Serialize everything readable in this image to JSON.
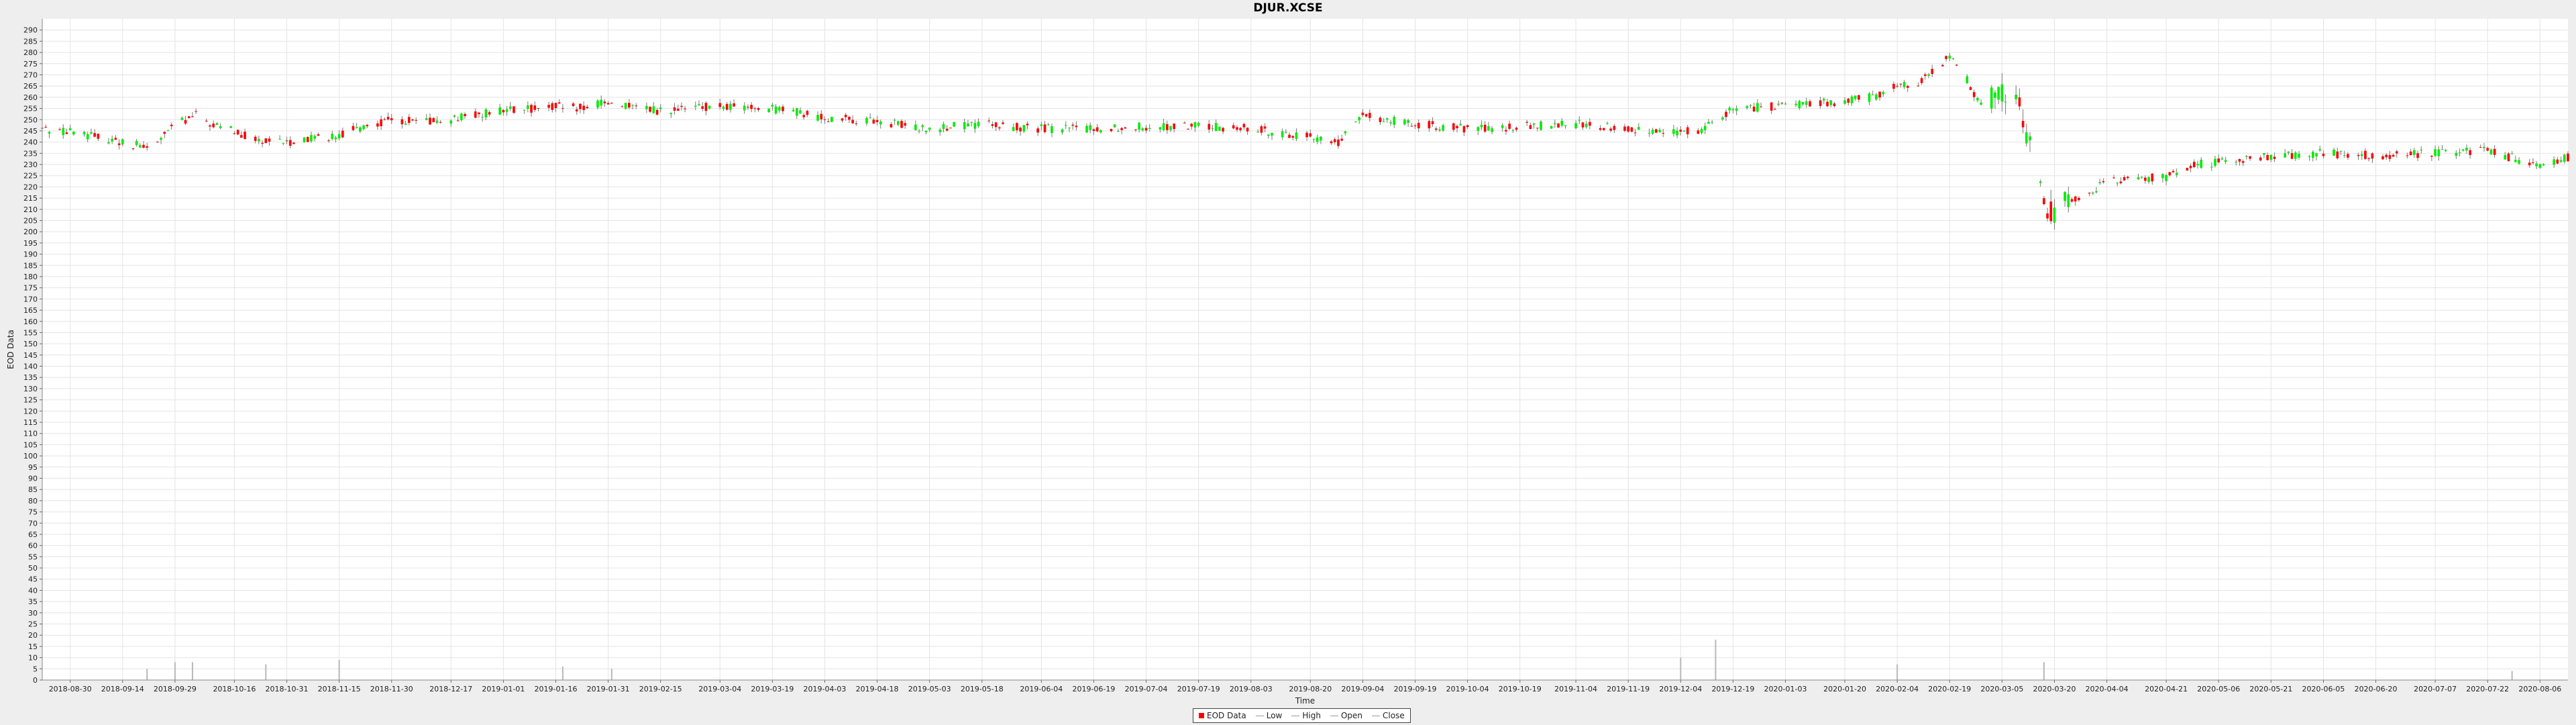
{
  "chart_data": {
    "type": "candlestick",
    "title": "DJUR.XCSE",
    "xlabel": "Time",
    "ylabel": "EOD Data",
    "ylim": [
      0,
      295
    ],
    "yticks": [
      0,
      5,
      10,
      15,
      20,
      25,
      30,
      35,
      40,
      45,
      50,
      55,
      60,
      65,
      70,
      75,
      80,
      85,
      90,
      95,
      100,
      105,
      110,
      115,
      120,
      125,
      130,
      135,
      140,
      145,
      150,
      155,
      160,
      165,
      170,
      175,
      180,
      185,
      190,
      195,
      200,
      205,
      210,
      215,
      220,
      225,
      230,
      235,
      240,
      245,
      250,
      255,
      260,
      265,
      270,
      275,
      280,
      285,
      290
    ],
    "xlim": [
      "2018-08-22",
      "2020-08-14"
    ],
    "xticks": [
      "2018-08-30",
      "2018-09-14",
      "2018-09-29",
      "2018-10-16",
      "2018-10-31",
      "2018-11-15",
      "2018-11-30",
      "2018-12-17",
      "2019-01-01",
      "2019-01-16",
      "2019-01-31",
      "2019-02-15",
      "2019-03-04",
      "2019-03-19",
      "2019-04-03",
      "2019-04-18",
      "2019-05-03",
      "2019-05-18",
      "2019-06-04",
      "2019-06-19",
      "2019-07-04",
      "2019-07-19",
      "2019-08-03",
      "2019-08-20",
      "2019-09-04",
      "2019-09-19",
      "2019-10-04",
      "2019-10-19",
      "2019-11-04",
      "2019-11-19",
      "2019-12-04",
      "2019-12-19",
      "2020-01-03",
      "2020-01-20",
      "2020-02-04",
      "2020-02-19",
      "2020-03-05",
      "2020-03-20",
      "2020-04-04",
      "2020-04-21",
      "2020-05-06",
      "2020-05-21",
      "2020-06-05",
      "2020-06-20",
      "2020-07-07",
      "2020-07-22",
      "2020-08-06"
    ],
    "grid": true,
    "legend_position": "bottom-center",
    "legend": [
      "EOD Data",
      "Low",
      "High",
      "Open",
      "Close"
    ],
    "colors": {
      "up": "#00ee00",
      "down": "#ff0000",
      "wick": "#777777",
      "volume": "#b8b8b8",
      "grid": "#e4e4e4",
      "plot_bg": "#ffffff"
    },
    "price_path": [
      [
        "2018-08-22",
        246
      ],
      [
        "2018-09-05",
        243
      ],
      [
        "2018-09-14",
        240
      ],
      [
        "2018-09-22",
        237
      ],
      [
        "2018-09-29",
        248
      ],
      [
        "2018-10-05",
        252
      ],
      [
        "2018-10-12",
        246
      ],
      [
        "2018-10-16",
        245
      ],
      [
        "2018-10-24",
        240
      ],
      [
        "2018-10-31",
        240
      ],
      [
        "2018-11-08",
        242
      ],
      [
        "2018-11-15",
        243
      ],
      [
        "2018-11-22",
        247
      ],
      [
        "2018-11-30",
        250
      ],
      [
        "2018-12-10",
        249
      ],
      [
        "2018-12-17",
        250
      ],
      [
        "2019-01-01",
        254
      ],
      [
        "2019-01-16",
        256
      ],
      [
        "2019-01-24",
        255
      ],
      [
        "2019-01-31",
        258
      ],
      [
        "2019-02-08",
        255
      ],
      [
        "2019-02-15",
        254
      ],
      [
        "2019-03-04",
        256
      ],
      [
        "2019-03-19",
        255
      ],
      [
        "2019-04-03",
        251
      ],
      [
        "2019-04-18",
        249
      ],
      [
        "2019-05-03",
        246
      ],
      [
        "2019-05-18",
        248
      ],
      [
        "2019-06-04",
        246
      ],
      [
        "2019-06-19",
        246
      ],
      [
        "2019-07-04",
        247
      ],
      [
        "2019-07-19",
        247
      ],
      [
        "2019-08-03",
        246
      ],
      [
        "2019-08-20",
        242
      ],
      [
        "2019-08-28",
        240
      ],
      [
        "2019-09-04",
        252
      ],
      [
        "2019-09-19",
        248
      ],
      [
        "2019-10-04",
        246
      ],
      [
        "2019-10-19",
        247
      ],
      [
        "2019-11-04",
        248
      ],
      [
        "2019-11-19",
        246
      ],
      [
        "2019-12-04",
        244
      ],
      [
        "2019-12-10",
        246
      ],
      [
        "2019-12-19",
        255
      ],
      [
        "2020-01-03",
        256
      ],
      [
        "2020-01-20",
        258
      ],
      [
        "2020-01-28",
        260
      ],
      [
        "2020-02-04",
        265
      ],
      [
        "2020-02-10",
        266
      ],
      [
        "2020-02-19",
        278
      ],
      [
        "2020-02-24",
        268
      ],
      [
        "2020-02-28",
        256
      ],
      [
        "2020-03-05",
        262
      ],
      [
        "2020-03-10",
        255
      ],
      [
        "2020-03-13",
        240
      ],
      [
        "2020-03-17",
        212
      ],
      [
        "2020-03-20",
        210
      ],
      [
        "2020-03-27",
        215
      ],
      [
        "2020-04-04",
        222
      ],
      [
        "2020-04-12",
        224
      ],
      [
        "2020-04-21",
        224
      ],
      [
        "2020-04-28",
        230
      ],
      [
        "2020-05-06",
        231
      ],
      [
        "2020-05-21",
        234
      ],
      [
        "2020-06-05",
        235
      ],
      [
        "2020-06-20",
        234
      ],
      [
        "2020-07-07",
        235
      ],
      [
        "2020-07-22",
        236
      ],
      [
        "2020-07-29",
        233
      ],
      [
        "2020-08-06",
        230
      ],
      [
        "2020-08-14",
        233
      ]
    ],
    "volume_spikes": [
      [
        "2018-09-21",
        5
      ],
      [
        "2018-09-29",
        8
      ],
      [
        "2018-10-04",
        8
      ],
      [
        "2018-10-25",
        7
      ],
      [
        "2018-11-15",
        9
      ],
      [
        "2019-01-18",
        6
      ],
      [
        "2019-02-01",
        5
      ],
      [
        "2019-12-04",
        10
      ],
      [
        "2019-12-14",
        18
      ],
      [
        "2020-02-04",
        7
      ],
      [
        "2020-03-17",
        8
      ],
      [
        "2020-07-29",
        4
      ]
    ]
  }
}
